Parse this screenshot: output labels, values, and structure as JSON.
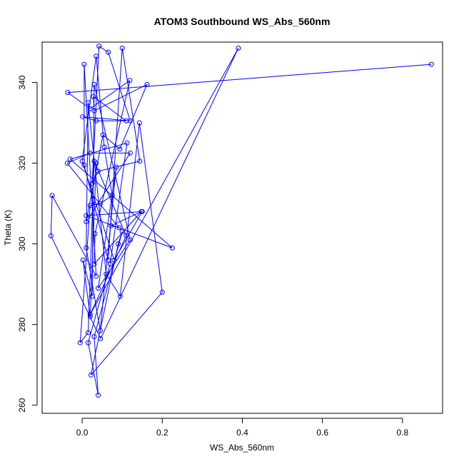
{
  "chart_data": {
    "type": "line",
    "title": "ATOM3 Southbound WS_Abs_560nm",
    "xlabel": "WS_Abs_560nm",
    "ylabel": "Theta (K)",
    "xlim": [
      -0.1,
      0.9
    ],
    "ylim": [
      258,
      350
    ],
    "x_ticks": [
      0.0,
      0.2,
      0.4,
      0.6,
      0.8
    ],
    "x_tick_labels": [
      "0.0",
      "0.2",
      "0.4",
      "0.6",
      "0.8"
    ],
    "y_ticks": [
      260,
      280,
      300,
      320,
      340
    ],
    "y_tick_labels": [
      "260",
      "280",
      "300",
      "320",
      "340"
    ],
    "grid": false,
    "series": [
      {
        "color": "#0000ff",
        "marker": "open-circle",
        "line": true,
        "x": [
          0.872,
          -0.036,
          0.02,
          0.119,
          0.032,
          0.03,
          0.148,
          0.072,
          0.092,
          -0.037,
          0.02,
          0.12,
          0.01,
          0.052,
          0.094,
          0.162,
          0.03,
          0.028,
          0.11,
          0.035,
          0.001,
          0.12,
          0.065,
          0.042,
          0.025,
          0.04,
          0.144,
          0.1,
          0.065,
          0.005,
          0.005,
          0.035,
          -0.075,
          -0.078,
          0.046,
          0.39,
          0.02,
          0.11,
          0.03,
          0.015,
          -0.005,
          0.02,
          0.045,
          0.075,
          0.055,
          0.035,
          0.0,
          0.08,
          0.15,
          0.01,
          0.225,
          -0.03,
          0.112,
          0.07,
          0.015,
          0.04,
          0.03,
          0.1,
          0.09,
          0.022,
          0.2,
          0.143,
          0.095,
          0.06,
          0.015,
          0.01,
          0.045,
          0.085,
          0.04,
          0.12,
          0.03,
          0.025,
          0.002,
          0.02,
          0.035
        ],
        "y": [
          344.5,
          337.5,
          333.5,
          340.5,
          302.5,
          295.0,
          308.0,
          304.5,
          304.0,
          320.0,
          322.5,
          322.5,
          305.5,
          327.0,
          323.5,
          339.5,
          333.0,
          336.5,
          330.5,
          330.5,
          331.5,
          330.5,
          347.5,
          349.0,
          315.0,
          318.0,
          320.5,
          348.5,
          296.0,
          319.5,
          344.5,
          292.0,
          312.0,
          302.0,
          276.5,
          348.5,
          282.5,
          302.0,
          320.5,
          278.0,
          275.5,
          309.5,
          310.0,
          312.0,
          324.0,
          346.5,
          320.5,
          296.0,
          308.0,
          307.0,
          299.0,
          321.0,
          325.0,
          295.0,
          275.5,
          262.5,
          277.0,
          303.0,
          300.0,
          267.5,
          288.0,
          330.0,
          287.0,
          292.5,
          335.0,
          299.0,
          278.5,
          319.0,
          289.0,
          301.0,
          339.5,
          287.0,
          296.0,
          282.0,
          320.0
        ]
      }
    ]
  }
}
